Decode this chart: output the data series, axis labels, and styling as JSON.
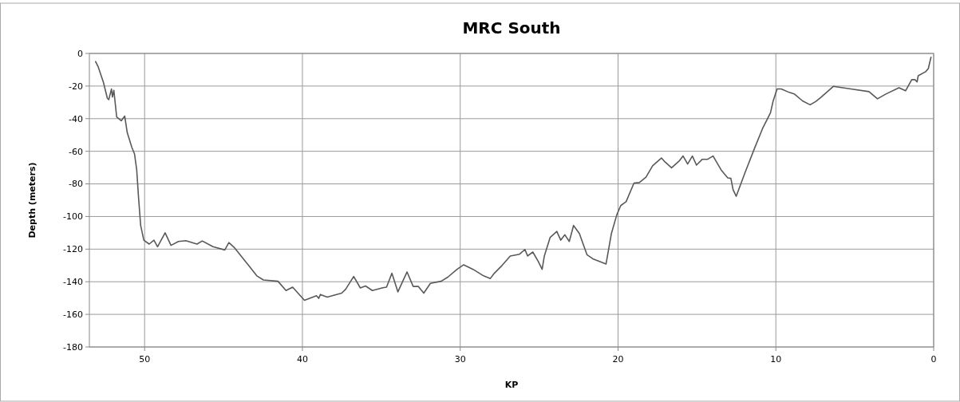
{
  "chart_data": {
    "type": "line",
    "title": "MRC South",
    "xlabel": "KP",
    "ylabel": "Depth (meters)",
    "xlim": [
      53.5,
      0
    ],
    "xticks": [
      50,
      40,
      30,
      20,
      10,
      0
    ],
    "ylim": [
      -180,
      0
    ],
    "yticks": [
      -180,
      -160,
      -140,
      -120,
      -100,
      -80,
      -60,
      -40,
      -20,
      0
    ],
    "grid": true,
    "series": [
      {
        "color": "#595959",
        "x": [
          53.11,
          52.95,
          52.61,
          52.36,
          52.27,
          52.1,
          52.04,
          51.95,
          51.77,
          51.48,
          51.26,
          51.1,
          50.81,
          50.64,
          50.5,
          50.39,
          50.25,
          50.05,
          49.71,
          49.41,
          49.18,
          48.7,
          48.33,
          47.86,
          47.39,
          46.68,
          46.35,
          45.67,
          44.92,
          44.66,
          44.33,
          43.48,
          42.89,
          42.47,
          41.55,
          41.04,
          40.62,
          39.87,
          39.11,
          38.97,
          38.86,
          38.43,
          37.51,
          37.26,
          36.75,
          36.33,
          36,
          35.57,
          34.9,
          34.67,
          34.33,
          33.95,
          33.37,
          32.98,
          32.65,
          32.31,
          31.89,
          31.21,
          30.79,
          30.2,
          29.78,
          29.19,
          28.52,
          28.09,
          27.84,
          27.34,
          26.83,
          26.24,
          25.9,
          25.73,
          25.4,
          25.06,
          24.81,
          24.67,
          24.3,
          23.88,
          23.63,
          23.37,
          23.09,
          22.82,
          22.45,
          21.97,
          21.6,
          20.76,
          20.42,
          20.08,
          19.83,
          19.49,
          18.99,
          18.65,
          18.23,
          17.81,
          17.25,
          17.03,
          16.61,
          16.1,
          15.88,
          15.59,
          15.29,
          15.03,
          14.66,
          14.32,
          13.98,
          13.47,
          13.05,
          12.85,
          12.71,
          12.51,
          11.95,
          11.36,
          10.85,
          10.34,
          10.17,
          9.92,
          9.66,
          9.15,
          8.81,
          8.31,
          7.83,
          7.46,
          7.12,
          6.36,
          5.25,
          4.1,
          3.56,
          3.05,
          2.2,
          1.78,
          1.39,
          1.19,
          1.05,
          0.98,
          0.51,
          0.34,
          0.17
        ],
        "values": [
          -5,
          -8,
          -17.7,
          -27.5,
          -28.3,
          -21.8,
          -26.7,
          -22.6,
          -38.9,
          -41.3,
          -38.4,
          -48.6,
          -57.6,
          -61.6,
          -71.4,
          -87.6,
          -105.5,
          -114.5,
          -116.9,
          -114.5,
          -118.5,
          -110,
          -117.7,
          -115.3,
          -114.8,
          -116.9,
          -115,
          -118.5,
          -120.5,
          -116,
          -118.9,
          -129.1,
          -136.4,
          -138.9,
          -139.7,
          -145.4,
          -143.3,
          -151.4,
          -148.6,
          -150.2,
          -147.8,
          -149.4,
          -147,
          -144.6,
          -136.8,
          -143.8,
          -142.6,
          -145.4,
          -143.7,
          -143.3,
          -134.8,
          -146.2,
          -134,
          -142.9,
          -142.9,
          -147,
          -141,
          -139.7,
          -137.2,
          -132.4,
          -129.6,
          -132.4,
          -136.4,
          -138,
          -134.8,
          -129.9,
          -124.2,
          -123.1,
          -120.2,
          -124.2,
          -121.8,
          -127.5,
          -132.4,
          -124.2,
          -112.8,
          -109.1,
          -114.5,
          -111.2,
          -115.3,
          -105.5,
          -110.4,
          -123.4,
          -125.9,
          -129.1,
          -110.4,
          -99,
          -93.3,
          -90.9,
          -79.5,
          -79.2,
          -75.9,
          -68.9,
          -64.1,
          -66.5,
          -70.1,
          -65.7,
          -62.9,
          -67.8,
          -62.9,
          -68.5,
          -64.9,
          -64.9,
          -62.9,
          -71.4,
          -76.3,
          -76.6,
          -83.6,
          -87.6,
          -73,
          -58.4,
          -46.2,
          -36.4,
          -29.1,
          -21.8,
          -21.8,
          -23.9,
          -25,
          -29.1,
          -31.5,
          -29.4,
          -26.7,
          -20.2,
          -21.8,
          -23.4,
          -27.8,
          -25,
          -21,
          -22.9,
          -16.1,
          -16.1,
          -17.4,
          -13.7,
          -11.2,
          -9.3,
          -2.3
        ]
      }
    ]
  }
}
